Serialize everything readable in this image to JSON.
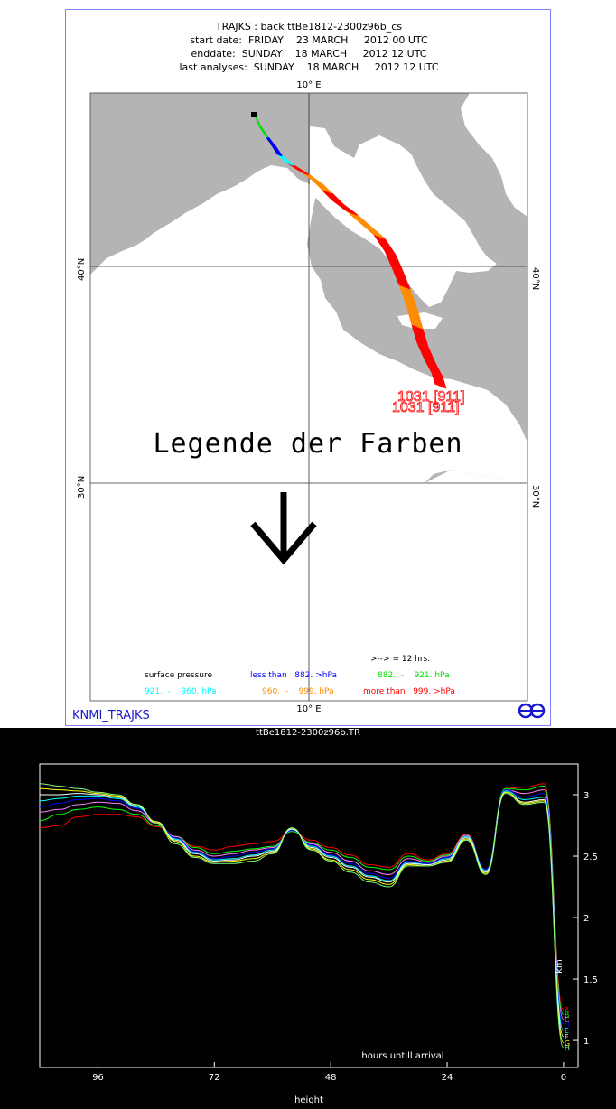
{
  "header": {
    "line1": "TRAJKS : back ttBe1812-2300z96b_cs",
    "line2": "start date:  FRIDAY    23 MARCH     2012 00 UTC",
    "line3": "enddate:  SUNDAY    18 MARCH     2012 12 UTC",
    "line4": "last analyses:  SUNDAY    18 MARCH     2012 12 UTC"
  },
  "map": {
    "lon_label_top": "10° E",
    "lon_label_bottom": "10° E",
    "lat_40_left": "40°N",
    "lat_40_right": "40°N",
    "lat_30_left": "30°N",
    "lat_30_right": "30°N",
    "start_label_1": "1031 [911]",
    "start_label_2": "1031 [911]",
    "colors": {
      "sea": "#b4b4b4",
      "land": "#ffffff",
      "track_red": "#ff0000",
      "track_orange": "#ff8c00",
      "track_blue": "#0000ff",
      "track_green": "#00e000",
      "track_cyan": "#00ffff"
    }
  },
  "overlay": {
    "heading": "Legende der Farben",
    "arrow_icon": "down-arrow-icon"
  },
  "legend": {
    "interval": ">--> = 12 hrs.",
    "title": "surface pressure",
    "blue_label": "less than   882. >hPa",
    "green_label": "882.  -    921. hPa",
    "cyan_label": "921.  -    960. hPa",
    "orange_label": "960.  -    999. hPa",
    "red_label": "more than   999. >hPa"
  },
  "brand": {
    "text": "KNMI_TRAJKS",
    "logo_icon": "knmi-logo-icon"
  },
  "height_chart": {
    "title": "ttBe1812-2300z96b.TR",
    "x_ticks": [
      "96",
      "72",
      "48",
      "24",
      "0"
    ],
    "y_ticks": [
      "3",
      "2.5",
      "2",
      "1.5",
      "1"
    ],
    "y_unit": "km",
    "x_caption": "hours untill arrival",
    "x_title": "height",
    "end_markers": [
      "A",
      "B",
      "C",
      "D",
      "E",
      "F",
      "G",
      "H"
    ]
  },
  "chart_data": {
    "type": "line",
    "title": "ttBe1812-2300z96b.TR",
    "xlabel": "height",
    "ylabel": "km",
    "xlim": [
      108,
      -3
    ],
    "ylim": [
      0.78,
      3.25
    ],
    "x": [
      108,
      104,
      100,
      96,
      92,
      88,
      84,
      80,
      76,
      72,
      68,
      64,
      60,
      56,
      52,
      48,
      44,
      40,
      36,
      32,
      28,
      24,
      20,
      16,
      12,
      8,
      4,
      0
    ],
    "series": [
      {
        "color": "#ff0000",
        "values": [
          2.73,
          2.75,
          2.82,
          2.84,
          2.84,
          2.82,
          2.74,
          2.66,
          2.58,
          2.55,
          2.58,
          2.6,
          2.62,
          2.7,
          2.63,
          2.57,
          2.51,
          2.43,
          2.41,
          2.52,
          2.47,
          2.52,
          2.68,
          2.37,
          3.05,
          3.06,
          3.09,
          1.25
        ]
      },
      {
        "color": "#00ff00",
        "values": [
          2.79,
          2.84,
          2.88,
          2.9,
          2.88,
          2.84,
          2.75,
          2.66,
          2.57,
          2.52,
          2.54,
          2.56,
          2.58,
          2.7,
          2.61,
          2.55,
          2.49,
          2.41,
          2.39,
          2.5,
          2.46,
          2.51,
          2.67,
          2.38,
          3.05,
          3.04,
          3.07,
          1.21
        ]
      },
      {
        "color": "#ff80ff",
        "values": [
          2.86,
          2.88,
          2.92,
          2.94,
          2.93,
          2.87,
          2.77,
          2.66,
          2.55,
          2.5,
          2.52,
          2.55,
          2.57,
          2.71,
          2.6,
          2.53,
          2.46,
          2.38,
          2.35,
          2.48,
          2.45,
          2.5,
          2.67,
          2.39,
          3.04,
          3.01,
          3.04,
          1.17
        ]
      },
      {
        "color": "#0000ff",
        "values": [
          2.9,
          2.93,
          2.96,
          2.97,
          2.95,
          2.89,
          2.78,
          2.65,
          2.54,
          2.48,
          2.5,
          2.53,
          2.56,
          2.71,
          2.59,
          2.51,
          2.44,
          2.36,
          2.32,
          2.46,
          2.44,
          2.49,
          2.66,
          2.39,
          3.04,
          2.98,
          3.01,
          1.13
        ]
      },
      {
        "color": "#00ffff",
        "values": [
          2.95,
          2.97,
          2.99,
          2.99,
          2.97,
          2.9,
          2.78,
          2.64,
          2.53,
          2.47,
          2.48,
          2.51,
          2.55,
          2.72,
          2.58,
          2.5,
          2.42,
          2.34,
          2.3,
          2.45,
          2.43,
          2.48,
          2.66,
          2.38,
          3.03,
          2.96,
          2.98,
          1.08
        ]
      },
      {
        "color": "#ffffff",
        "values": [
          3.0,
          3.0,
          3.01,
          3.0,
          2.98,
          2.91,
          2.78,
          2.63,
          2.52,
          2.46,
          2.47,
          2.5,
          2.54,
          2.72,
          2.57,
          2.49,
          2.41,
          2.33,
          2.29,
          2.44,
          2.43,
          2.47,
          2.65,
          2.37,
          3.02,
          2.94,
          2.96,
          1.03
        ]
      },
      {
        "color": "#ffff00",
        "values": [
          3.05,
          3.04,
          3.03,
          3.01,
          2.99,
          2.92,
          2.78,
          2.62,
          2.5,
          2.45,
          2.46,
          2.48,
          2.53,
          2.73,
          2.56,
          2.47,
          2.39,
          2.31,
          2.27,
          2.43,
          2.42,
          2.46,
          2.64,
          2.36,
          3.02,
          2.93,
          2.95,
          0.98
        ]
      },
      {
        "color": "#80ff80",
        "values": [
          3.09,
          3.07,
          3.05,
          3.02,
          3.0,
          2.92,
          2.77,
          2.6,
          2.49,
          2.44,
          2.44,
          2.46,
          2.52,
          2.73,
          2.55,
          2.46,
          2.37,
          2.29,
          2.25,
          2.42,
          2.42,
          2.45,
          2.63,
          2.35,
          3.01,
          2.92,
          2.94,
          0.94
        ]
      }
    ]
  }
}
